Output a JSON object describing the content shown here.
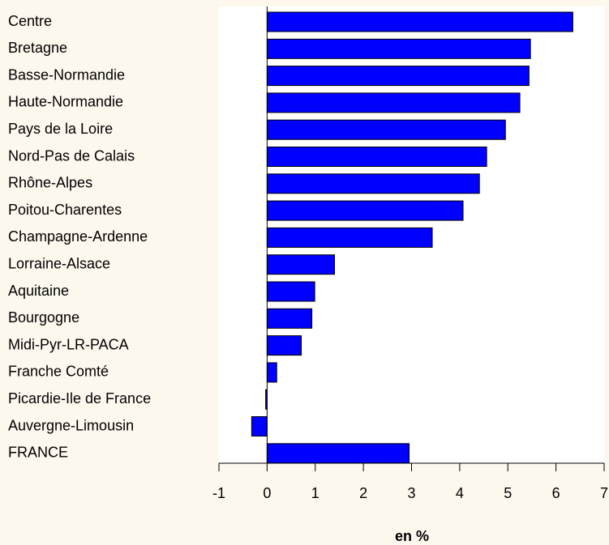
{
  "chart_data": {
    "type": "barh",
    "categories": [
      "Centre",
      "Bretagne",
      "Basse-Normandie",
      "Haute-Normandie",
      "Pays de la Loire",
      "Nord-Pas de Calais",
      "Rhône-Alpes",
      "Poitou-Charentes",
      "Champagne-Ardenne",
      "Lorraine-Alsace",
      "Aquitaine",
      "Bourgogne",
      "Midi-Pyr-LR-PACA",
      "Franche Comté",
      "Picardie-Ile de France",
      "Auvergne-Limousin",
      "FRANCE"
    ],
    "values": [
      6.35,
      5.47,
      5.44,
      5.25,
      4.95,
      4.56,
      4.41,
      4.07,
      3.43,
      1.4,
      0.99,
      0.93,
      0.71,
      0.2,
      -0.03,
      -0.32,
      2.95
    ],
    "color": "#0000ff",
    "xlabel": "en %",
    "xlim": [
      -1,
      7
    ],
    "xticks": [
      -1,
      0,
      1,
      2,
      3,
      4,
      5,
      6,
      7
    ]
  }
}
